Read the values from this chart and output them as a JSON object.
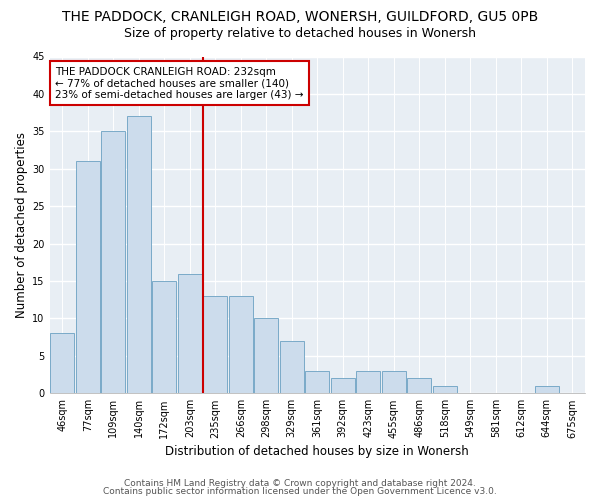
{
  "title": "THE PADDOCK, CRANLEIGH ROAD, WONERSH, GUILDFORD, GU5 0PB",
  "subtitle": "Size of property relative to detached houses in Wonersh",
  "xlabel": "Distribution of detached houses by size in Wonersh",
  "ylabel": "Number of detached properties",
  "bins": [
    "46sqm",
    "77sqm",
    "109sqm",
    "140sqm",
    "172sqm",
    "203sqm",
    "235sqm",
    "266sqm",
    "298sqm",
    "329sqm",
    "361sqm",
    "392sqm",
    "423sqm",
    "455sqm",
    "486sqm",
    "518sqm",
    "549sqm",
    "581sqm",
    "612sqm",
    "644sqm",
    "675sqm"
  ],
  "values": [
    8,
    31,
    35,
    37,
    15,
    16,
    13,
    13,
    10,
    7,
    3,
    2,
    3,
    3,
    2,
    1,
    0,
    0,
    0,
    1,
    0
  ],
  "bar_color": "#ccdcec",
  "bar_edge_color": "#7aaac8",
  "vline_color": "#cc0000",
  "annotation_text": "THE PADDOCK CRANLEIGH ROAD: 232sqm\n← 77% of detached houses are smaller (140)\n23% of semi-detached houses are larger (43) →",
  "annotation_box_color": "#ffffff",
  "annotation_box_edge": "#cc0000",
  "ylim": [
    0,
    45
  ],
  "yticks": [
    0,
    5,
    10,
    15,
    20,
    25,
    30,
    35,
    40,
    45
  ],
  "footer1": "Contains HM Land Registry data © Crown copyright and database right 2024.",
  "footer2": "Contains public sector information licensed under the Open Government Licence v3.0.",
  "bg_color": "#ffffff",
  "plot_bg_color": "#e8eef4",
  "grid_color": "#ffffff",
  "title_fontsize": 10,
  "subtitle_fontsize": 9,
  "axis_label_fontsize": 8.5,
  "tick_fontsize": 7,
  "annotation_fontsize": 7.5,
  "footer_fontsize": 6.5
}
